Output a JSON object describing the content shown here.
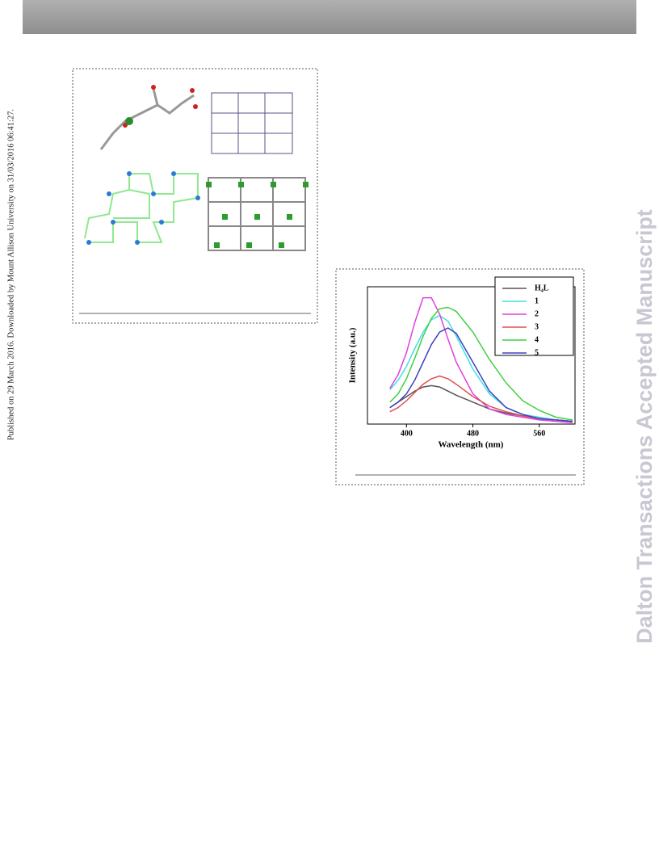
{
  "sidebar_left": "Published on 29 March 2016. Downloaded by Mount Allison University on 31/03/2016 06:41:27.",
  "sidebar_right": "Dalton Transactions Accepted Manuscript",
  "chart_data": {
    "type": "line",
    "x_label": "Wavelength (nm)",
    "y_label": "Intensity (a.u.)",
    "x": [
      380,
      390,
      400,
      410,
      420,
      430,
      440,
      450,
      460,
      480,
      500,
      520,
      540,
      560,
      580,
      600
    ],
    "xlim": [
      353,
      603
    ],
    "xticks": [
      400,
      480,
      560
    ],
    "ylim": [
      0,
      1
    ],
    "legend": "upper right",
    "series": [
      {
        "name": "H₄L",
        "color": "#555555",
        "values": [
          0.12,
          0.16,
          0.2,
          0.24,
          0.27,
          0.28,
          0.27,
          0.24,
          0.21,
          0.16,
          0.11,
          0.08,
          0.06,
          0.04,
          0.03,
          0.02
        ]
      },
      {
        "name": "1",
        "color": "#40e0e0",
        "values": [
          0.25,
          0.32,
          0.42,
          0.55,
          0.67,
          0.76,
          0.79,
          0.75,
          0.64,
          0.4,
          0.22,
          0.12,
          0.07,
          0.05,
          0.03,
          0.02
        ]
      },
      {
        "name": "2",
        "color": "#e040e0",
        "values": [
          0.26,
          0.36,
          0.52,
          0.74,
          0.92,
          0.92,
          0.8,
          0.62,
          0.45,
          0.22,
          0.11,
          0.07,
          0.05,
          0.03,
          0.02,
          0.01
        ]
      },
      {
        "name": "3",
        "color": "#e05050",
        "values": [
          0.09,
          0.12,
          0.17,
          0.23,
          0.29,
          0.33,
          0.35,
          0.33,
          0.29,
          0.2,
          0.13,
          0.09,
          0.06,
          0.04,
          0.03,
          0.02
        ]
      },
      {
        "name": "4",
        "color": "#40d040",
        "values": [
          0.16,
          0.22,
          0.33,
          0.48,
          0.64,
          0.77,
          0.84,
          0.85,
          0.82,
          0.67,
          0.47,
          0.3,
          0.17,
          0.1,
          0.05,
          0.03
        ]
      },
      {
        "name": "5",
        "color": "#4040c0",
        "values": [
          0.12,
          0.16,
          0.22,
          0.32,
          0.45,
          0.58,
          0.67,
          0.7,
          0.66,
          0.45,
          0.24,
          0.12,
          0.07,
          0.04,
          0.03,
          0.02
        ]
      }
    ]
  }
}
